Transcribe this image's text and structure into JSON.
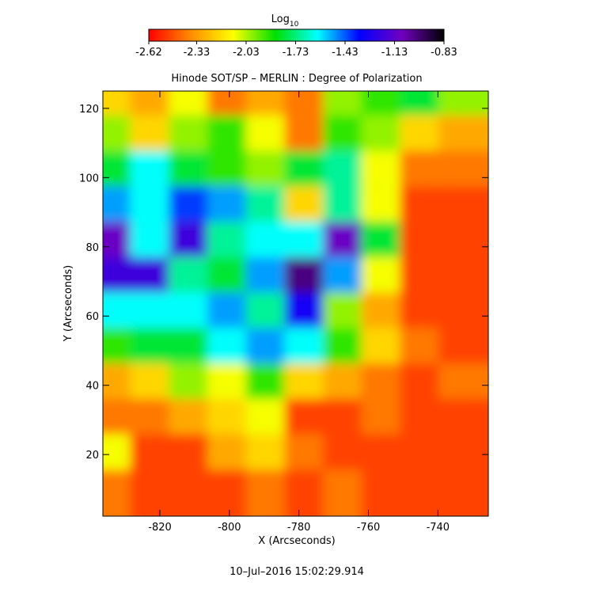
{
  "chart_data": {
    "type": "heatmap",
    "title": "Hinode SOT/SP – MERLIN : Degree of Polarization",
    "xlabel": "X (Arcseconds)",
    "ylabel": "Y (Arcseconds)",
    "footer": "10–Jul–2016 15:02:29.914",
    "colorbar_label": "Log",
    "colorbar_label_sub": "10",
    "zlim": [
      -2.62,
      -0.83
    ],
    "zticks": [
      -2.62,
      -2.33,
      -2.03,
      -1.73,
      -1.43,
      -1.13,
      -0.83
    ],
    "colormap": [
      "#ff0000",
      "#ff8c00",
      "#ffff00",
      "#00e000",
      "#00ffff",
      "#0000ff",
      "#7000c0",
      "#000000"
    ],
    "xlim": [
      -836.4,
      -725.5
    ],
    "ylim": [
      2.2,
      125
    ],
    "xticks": [
      -820,
      -800,
      -780,
      -760,
      -740
    ],
    "yticks": [
      20,
      40,
      60,
      80,
      100,
      120
    ],
    "x": [
      -830.9,
      -819.8,
      -808.7,
      -797.6,
      -786.5,
      -775.4,
      -764.3,
      -753.3,
      -742.2,
      -731.1
    ],
    "y": [
      119.9,
      109.7,
      99.4,
      89.2,
      79.0,
      68.7,
      58.5,
      48.3,
      38.0,
      27.8,
      17.6,
      7.3
    ],
    "z": [
      [
        -2.2,
        -2.3,
        -2.1,
        -2.4,
        -2.3,
        -2.4,
        -2.0,
        -1.9,
        -1.8,
        -2.0
      ],
      [
        -2.0,
        -2.2,
        -2.0,
        -1.9,
        -2.1,
        -2.4,
        -1.9,
        -2.0,
        -2.2,
        -2.3
      ],
      [
        -1.8,
        -1.6,
        -1.8,
        -1.9,
        -2.0,
        -1.8,
        -1.7,
        -2.1,
        -2.4,
        -2.4
      ],
      [
        -1.5,
        -1.6,
        -1.4,
        -1.5,
        -1.7,
        -2.2,
        -1.7,
        -2.1,
        -2.5,
        -2.5
      ],
      [
        -1.1,
        -1.6,
        -1.2,
        -1.7,
        -1.6,
        -1.6,
        -1.1,
        -1.8,
        -2.5,
        -2.5
      ],
      [
        -1.2,
        -1.2,
        -1.7,
        -1.8,
        -1.5,
        -1.0,
        -1.5,
        -2.1,
        -2.5,
        -2.5
      ],
      [
        -1.6,
        -1.6,
        -1.6,
        -1.5,
        -1.7,
        -1.3,
        -2.0,
        -2.3,
        -2.5,
        -2.5
      ],
      [
        -1.9,
        -1.8,
        -1.8,
        -1.6,
        -1.5,
        -1.6,
        -1.9,
        -2.2,
        -2.4,
        -2.5
      ],
      [
        -2.3,
        -2.2,
        -2.0,
        -2.1,
        -1.9,
        -2.2,
        -2.3,
        -2.4,
        -2.5,
        -2.4
      ],
      [
        -2.4,
        -2.4,
        -2.3,
        -2.2,
        -2.1,
        -2.5,
        -2.5,
        -2.4,
        -2.5,
        -2.5
      ],
      [
        -2.1,
        -2.5,
        -2.5,
        -2.3,
        -2.2,
        -2.4,
        -2.5,
        -2.5,
        -2.5,
        -2.5
      ],
      [
        -2.4,
        -2.5,
        -2.5,
        -2.5,
        -2.4,
        -2.5,
        -2.4,
        -2.5,
        -2.5,
        -2.5
      ]
    ]
  }
}
